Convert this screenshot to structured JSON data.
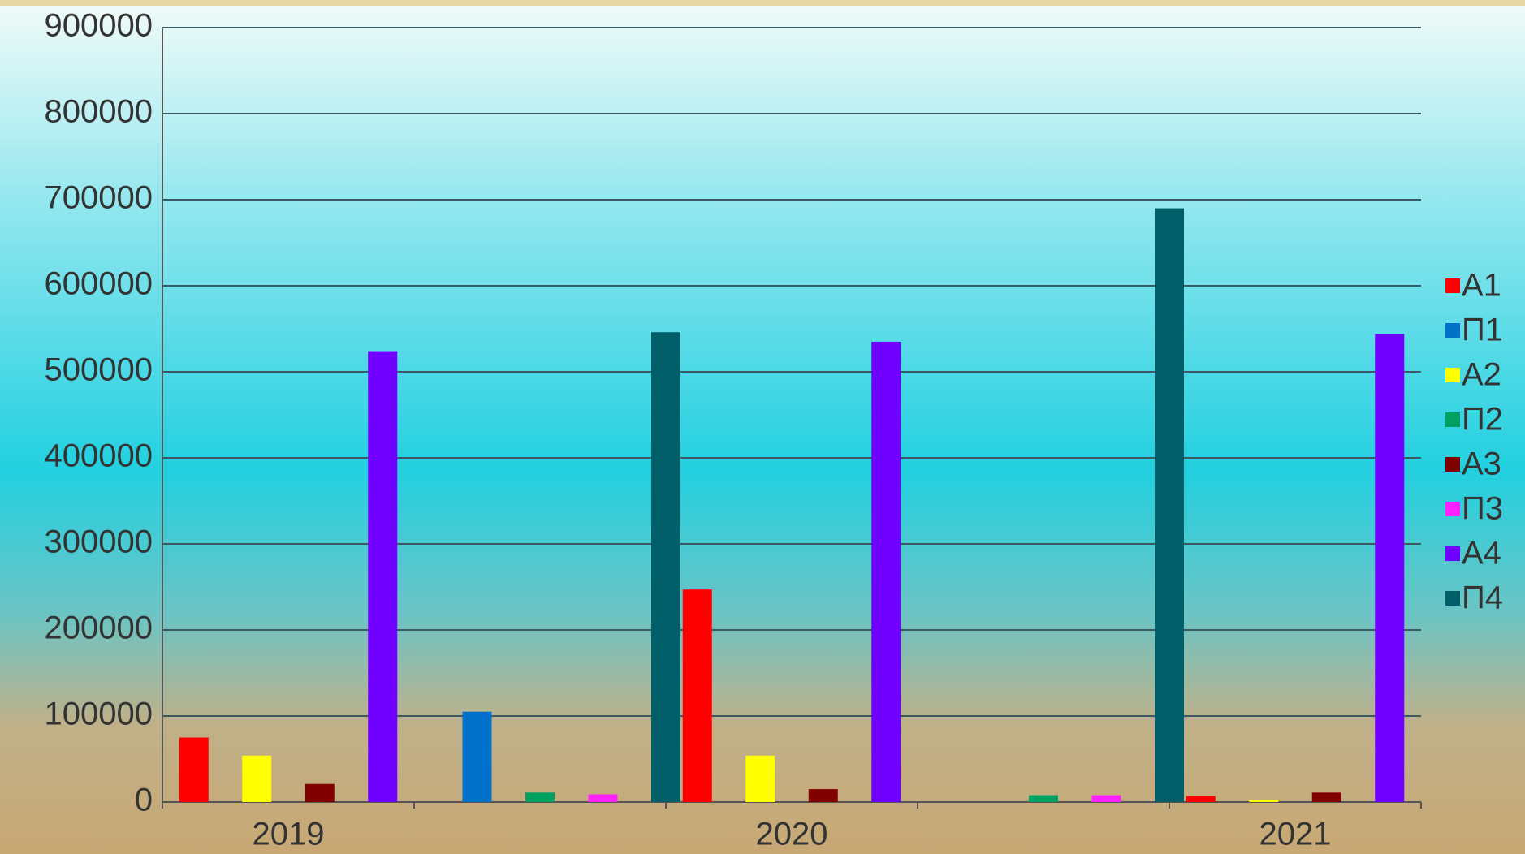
{
  "chart_data": {
    "type": "bar",
    "categories": [
      "2019",
      null,
      "2020",
      null,
      "2021"
    ],
    "series": [
      {
        "name": "А1",
        "color": "#ff0000",
        "values": [
          75000,
          null,
          247000,
          null,
          7000
        ]
      },
      {
        "name": "П1",
        "color": "#0070c8",
        "values": [
          null,
          105000,
          null,
          null,
          null
        ]
      },
      {
        "name": "А2",
        "color": "#ffff00",
        "values": [
          54000,
          null,
          54000,
          null,
          2000
        ]
      },
      {
        "name": "П2",
        "color": "#00a060",
        "values": [
          null,
          11000,
          null,
          8000,
          null
        ]
      },
      {
        "name": "А3",
        "color": "#800000",
        "values": [
          21000,
          null,
          15000,
          null,
          11000
        ]
      },
      {
        "name": "П3",
        "color": "#ff20ff",
        "values": [
          null,
          9000,
          null,
          8000,
          null
        ]
      },
      {
        "name": "А4",
        "color": "#7000ff",
        "values": [
          524000,
          null,
          535000,
          null,
          544000
        ]
      },
      {
        "name": "П4",
        "color": "#005f68",
        "values": [
          null,
          546000,
          null,
          690000,
          null
        ]
      }
    ],
    "ylim": [
      0,
      900000
    ],
    "yticks": [
      0,
      100000,
      200000,
      300000,
      400000,
      500000,
      600000,
      700000,
      800000,
      900000
    ],
    "grid": true,
    "legend": "right"
  }
}
